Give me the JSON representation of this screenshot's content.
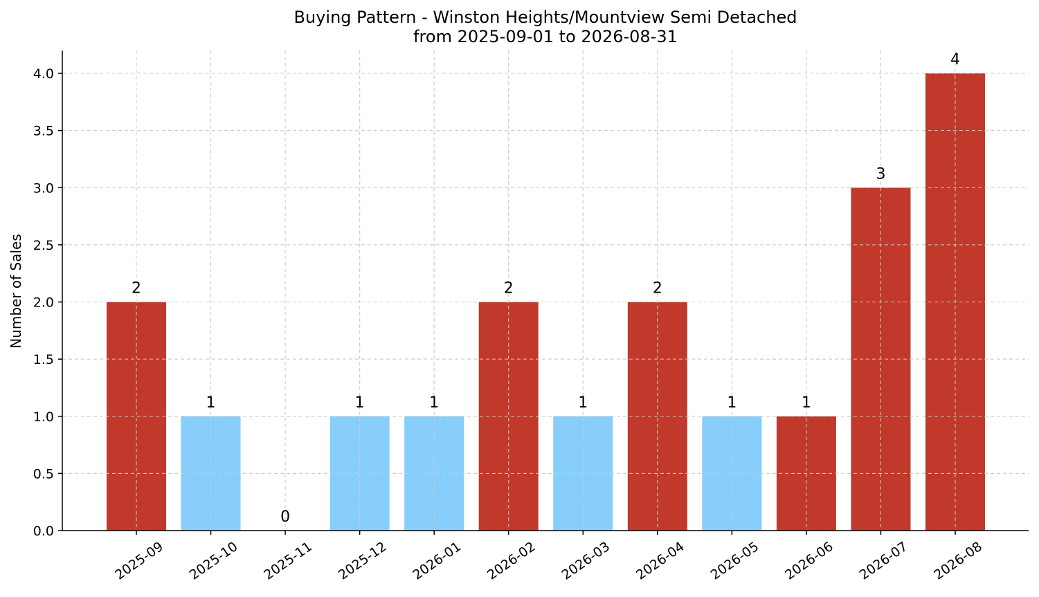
{
  "colors": {
    "high": "#c0392b",
    "low": "#87cefa",
    "grid": "#cccccc",
    "axis": "#000000"
  },
  "chart_data": {
    "type": "bar",
    "title_line1": "Buying Pattern - Winston Heights/Mountview Semi Detached",
    "title_line2": "from 2025-09-01 to 2026-08-31",
    "xlabel": "",
    "ylabel": "Number of Sales",
    "ylim": [
      0,
      4.2
    ],
    "yticks": [
      "0.0",
      "0.5",
      "1.0",
      "1.5",
      "2.0",
      "2.5",
      "3.0",
      "3.5",
      "4.0"
    ],
    "categories": [
      "2025-09",
      "2025-10",
      "2025-11",
      "2025-12",
      "2026-01",
      "2026-02",
      "2026-03",
      "2026-04",
      "2026-05",
      "2026-06",
      "2026-07",
      "2026-08"
    ],
    "values": [
      2,
      1,
      0,
      1,
      1,
      2,
      1,
      2,
      1,
      1,
      3,
      4
    ],
    "bar_colors": [
      "#c0392b",
      "#87cefa",
      "#87cefa",
      "#87cefa",
      "#87cefa",
      "#c0392b",
      "#87cefa",
      "#c0392b",
      "#87cefa",
      "#c0392b",
      "#c0392b",
      "#c0392b"
    ],
    "data_labels": [
      "2",
      "1",
      "0",
      "1",
      "1",
      "2",
      "1",
      "2",
      "1",
      "1",
      "3",
      "4"
    ],
    "grid": true,
    "legend": "none"
  }
}
